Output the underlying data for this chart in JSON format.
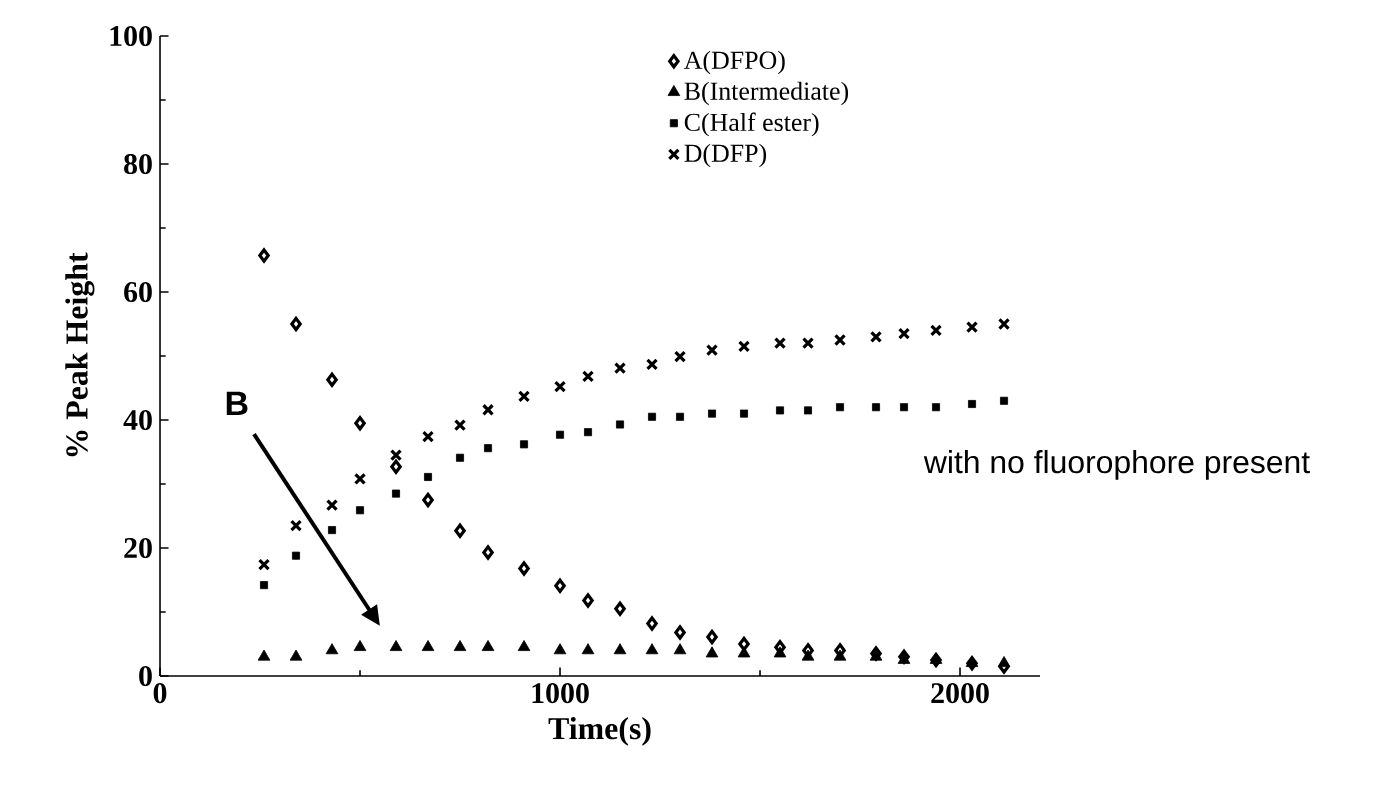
{
  "chart_data": {
    "type": "scatter",
    "xlabel": "Time(s)",
    "ylabel": "% Peak Height",
    "x": [
      260,
      340,
      430,
      500,
      590,
      670,
      750,
      820,
      910,
      1000,
      1070,
      1150,
      1230,
      1300,
      1380,
      1460,
      1550,
      1620,
      1700,
      1790,
      1860,
      1940,
      2030,
      2110
    ],
    "series": [
      {
        "name": "A(DFPO)",
        "color": "#000000",
        "marker": "diamond",
        "values": [
          65.7,
          55,
          46.3,
          39.5,
          32.7,
          27.5,
          22.7,
          19.3,
          16.8,
          14.1,
          11.8,
          10.5,
          8.2,
          6.8,
          6.1,
          5,
          4.5,
          4,
          4,
          3.5,
          3,
          2.5,
          2,
          1.5
        ]
      },
      {
        "name": "B(Intermediate)",
        "color": "#000000",
        "marker": "triangle",
        "values": [
          3,
          3,
          4,
          4.5,
          4.5,
          4.5,
          4.5,
          4.5,
          4.5,
          4,
          4,
          4,
          4,
          4,
          3.5,
          3.5,
          3.5,
          3,
          3,
          3,
          2.5,
          2.5,
          2,
          2
        ]
      },
      {
        "name": "C(Half ester)",
        "color": "#000000",
        "marker": "square",
        "values": [
          14.2,
          18.8,
          22.8,
          25.9,
          28.5,
          31.1,
          34.1,
          35.6,
          36.2,
          37.7,
          38.1,
          39.3,
          40.5,
          40.5,
          41,
          41,
          41.5,
          41.5,
          42,
          42,
          42,
          42,
          42.5,
          43
        ]
      },
      {
        "name": "D(DFP)",
        "color": "#000000",
        "marker": "cross",
        "values": [
          17.4,
          23.5,
          26.7,
          30.8,
          34.5,
          37.4,
          39.2,
          41.6,
          43.7,
          45.2,
          46.8,
          48.1,
          48.7,
          49.9,
          50.9,
          51.5,
          52,
          52,
          52.5,
          53,
          53.5,
          54,
          54.5,
          55
        ]
      }
    ],
    "xlim": [
      0,
      2200
    ],
    "ylim": [
      0,
      100
    ],
    "xticks": [
      0,
      1000,
      2000
    ],
    "yticks": [
      0,
      20,
      40,
      60,
      80,
      100
    ],
    "legend": "top right",
    "annotations": [
      "B",
      "with no fluorophore present"
    ]
  }
}
